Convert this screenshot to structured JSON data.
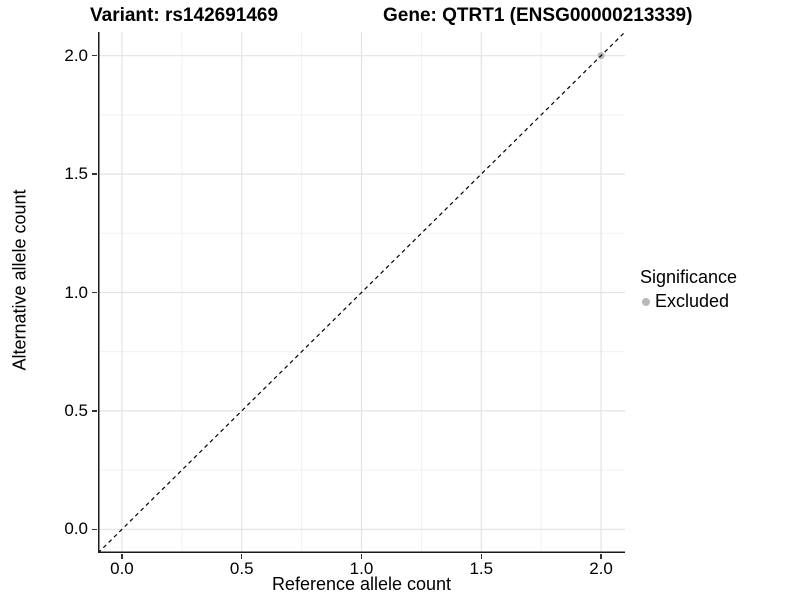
{
  "chart_data": {
    "type": "scatter",
    "title_left": "Variant: rs142691469",
    "title_right": "Gene: QTRT1 (ENSG00000213339)",
    "xlabel": "Reference allele count",
    "ylabel": "Alternative allele count",
    "xlim": [
      -0.1,
      2.1
    ],
    "ylim": [
      -0.1,
      2.1
    ],
    "x_tick_values": [
      0.0,
      0.5,
      1.0,
      1.5,
      2.0
    ],
    "x_tick_labels": [
      "0.0",
      "0.5",
      "1.0",
      "1.5",
      "2.0"
    ],
    "y_tick_values": [
      0.0,
      0.5,
      1.0,
      1.5,
      2.0
    ],
    "y_tick_labels": [
      "0.0",
      "0.5",
      "1.0",
      "1.5",
      "2.0"
    ],
    "grid": {
      "major": true,
      "minor": true
    },
    "reference_line": {
      "type": "identity y=x",
      "style": "dashed",
      "from": [
        -0.1,
        -0.1
      ],
      "to": [
        2.1,
        2.1
      ],
      "color": "#000000"
    },
    "series": [
      {
        "name": "Excluded",
        "color": "#b8b8b8",
        "points": [
          {
            "x": 2.0,
            "y": 2.0
          }
        ]
      }
    ],
    "legend": {
      "position": "right",
      "title": "Significance",
      "items": [
        {
          "label": "Excluded",
          "color": "#b8b8b8"
        }
      ]
    },
    "colors": {
      "major_grid": "#e3e3e3",
      "minor_grid": "#f1f1f1",
      "axis_line": "#1a1a1a",
      "tick_mark": "#333333",
      "text": "#000000",
      "background": "#ffffff"
    }
  }
}
